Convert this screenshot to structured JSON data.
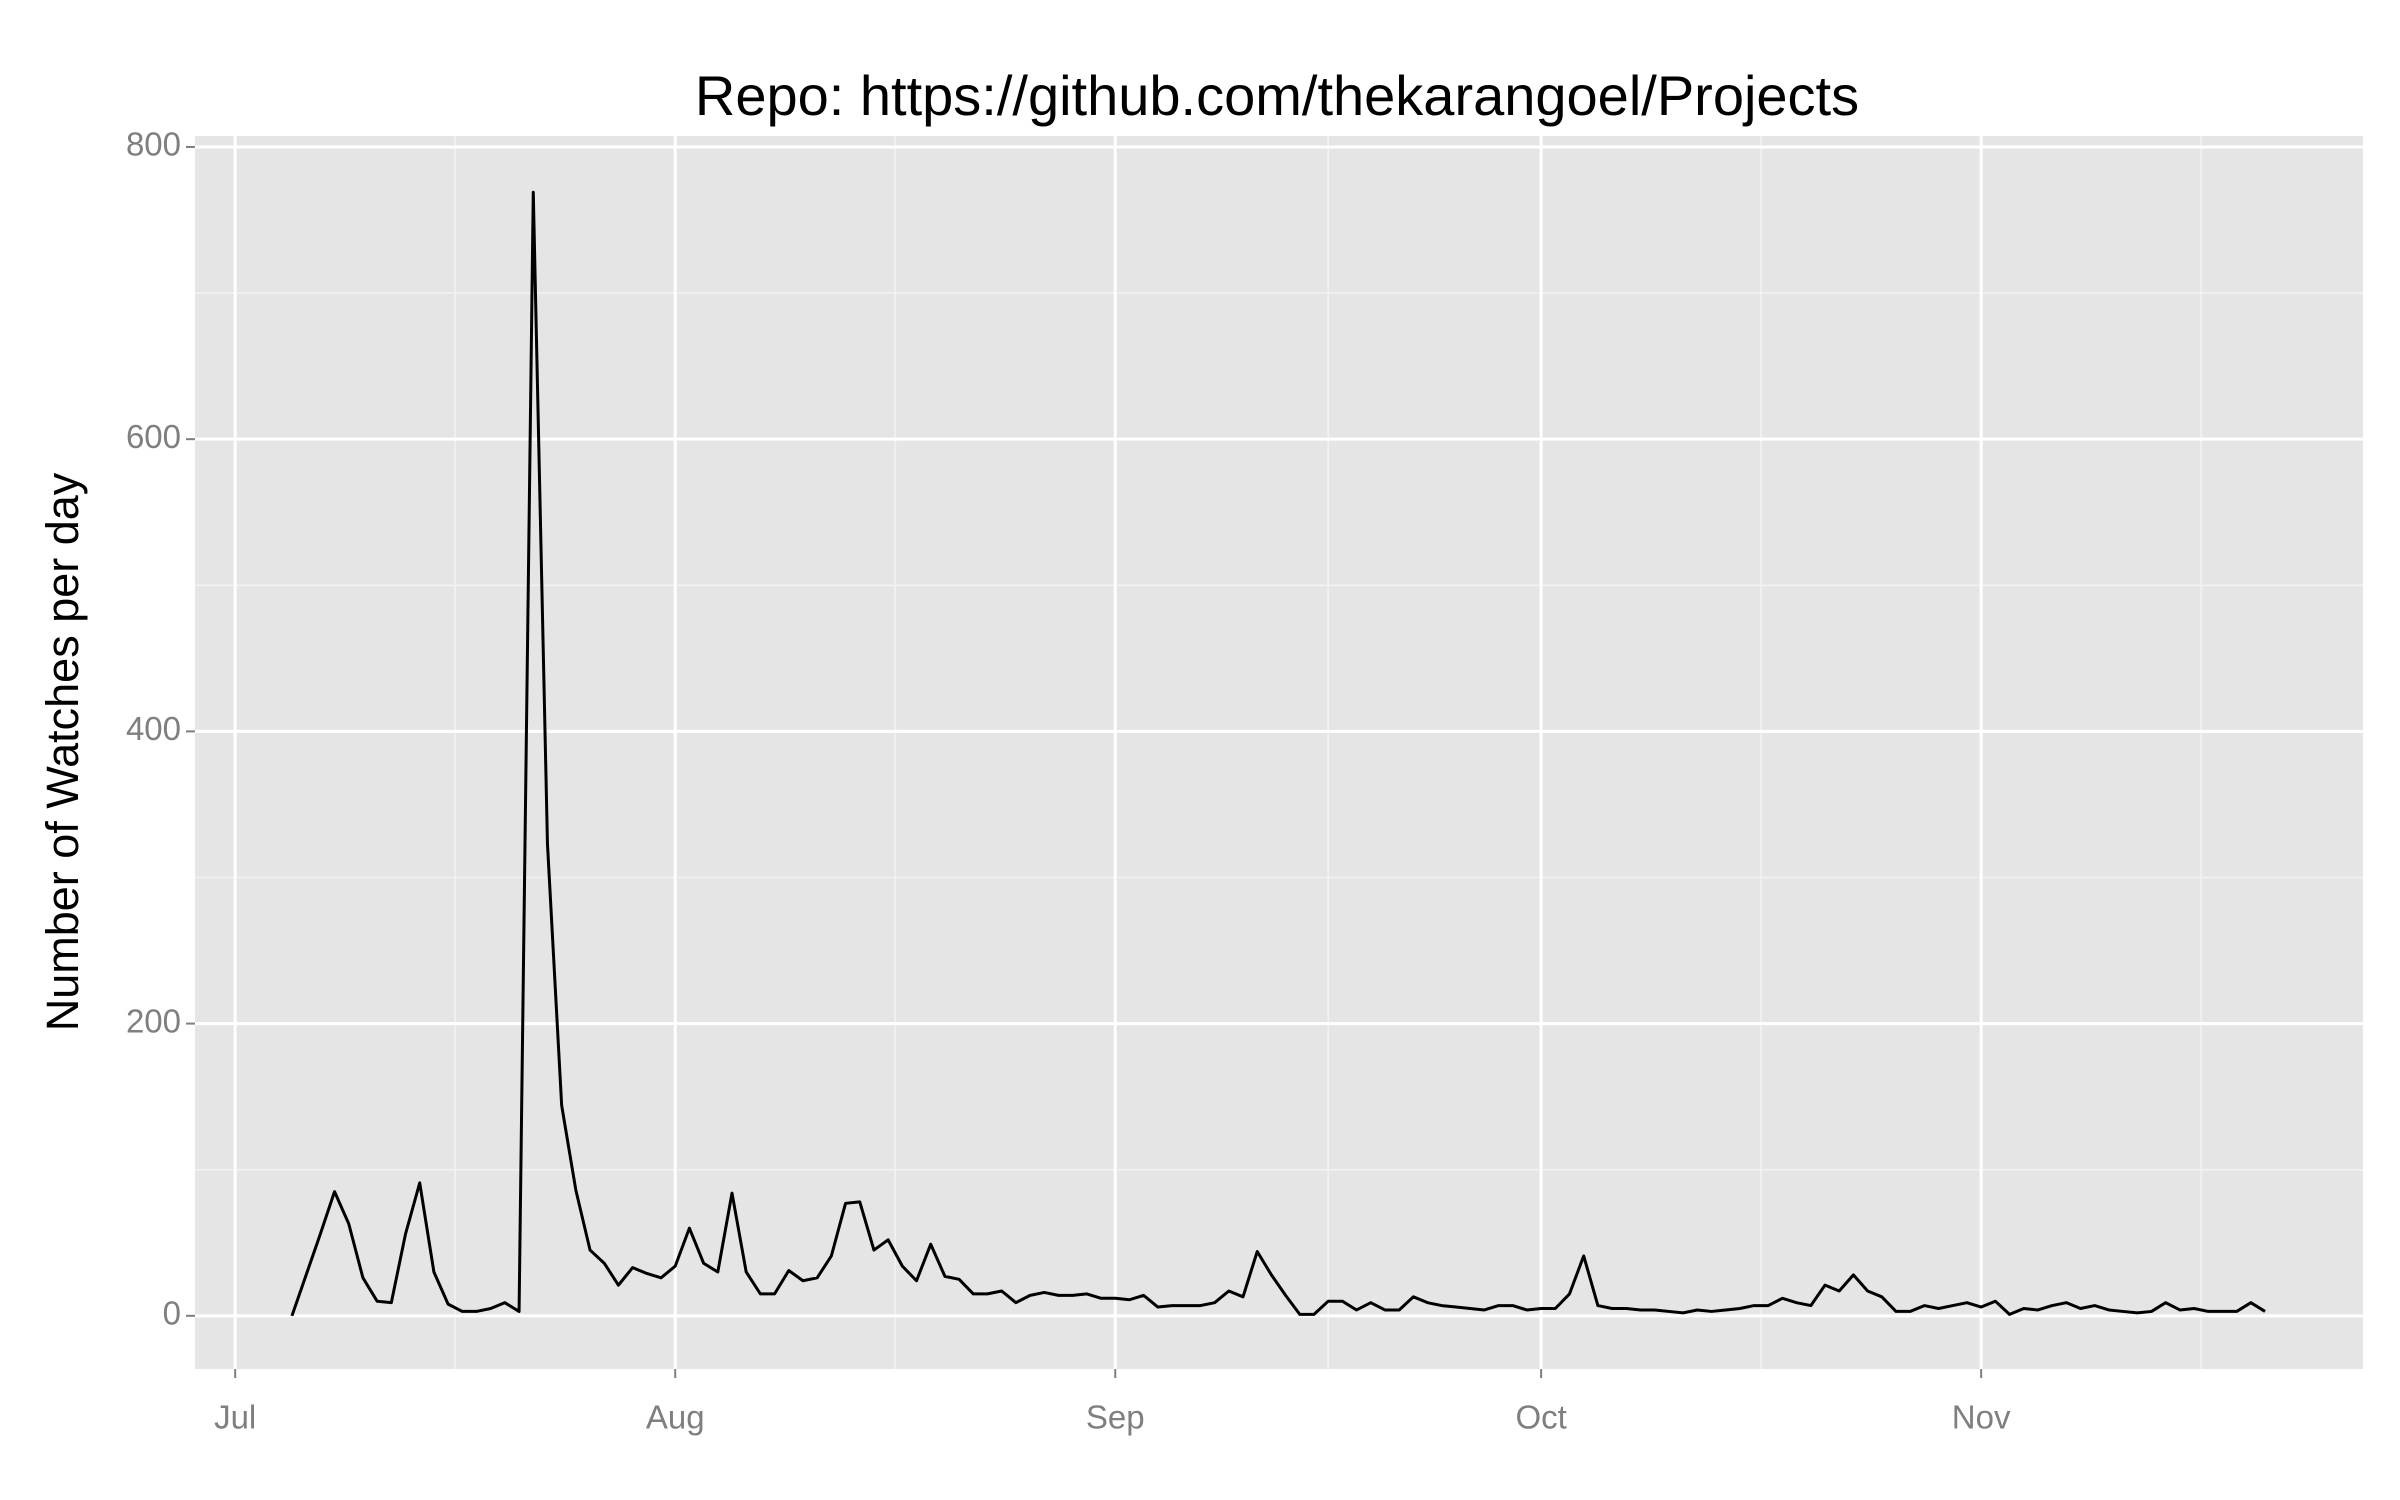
{
  "chart_data": {
    "type": "line",
    "title": "Repo: https://github.com/thekarangoel/Projects",
    "y_label": "Number of Watches per day",
    "x": [
      4,
      5,
      6,
      7,
      8,
      9,
      10,
      11,
      12,
      13,
      14,
      15,
      16,
      17,
      18,
      19,
      20,
      21,
      22,
      23,
      24,
      25,
      26,
      27,
      28,
      29,
      30,
      31,
      32,
      33,
      34,
      35,
      36,
      37,
      38,
      39,
      40,
      41,
      42,
      43,
      44,
      45,
      46,
      47,
      48,
      49,
      50,
      51,
      52,
      53,
      54,
      55,
      56,
      57,
      58,
      59,
      60,
      61,
      62,
      63,
      64,
      65,
      66,
      67,
      68,
      69,
      70,
      71,
      72,
      73,
      74,
      75,
      76,
      77,
      78,
      79,
      80,
      81,
      82,
      83,
      84,
      85,
      86,
      87,
      88,
      89,
      90,
      91,
      92,
      93,
      94,
      95,
      96,
      97,
      98,
      99,
      100,
      101,
      102,
      103,
      104,
      105,
      106,
      107,
      108,
      109,
      110,
      111,
      112,
      113,
      114,
      115,
      116,
      117,
      118,
      119,
      120,
      121,
      122,
      123,
      124,
      125,
      126,
      127,
      128,
      129,
      130,
      131,
      132,
      133,
      134,
      135,
      136,
      137,
      138,
      139,
      140,
      141,
      142,
      143
    ],
    "values": [
      0,
      28,
      56,
      85,
      63,
      26,
      10,
      9,
      56,
      91,
      30,
      8,
      3,
      3,
      5,
      9,
      3,
      769,
      323,
      144,
      86,
      45,
      36,
      21,
      33,
      29,
      26,
      34,
      60,
      36,
      30,
      84,
      30,
      15,
      15,
      31,
      24,
      26,
      41,
      77,
      78,
      45,
      52,
      34,
      24,
      49,
      27,
      25,
      15,
      15,
      17,
      9,
      14,
      16,
      14,
      14,
      15,
      12,
      12,
      11,
      14,
      6,
      7,
      7,
      7,
      9,
      17,
      13,
      44,
      28,
      14,
      1,
      1,
      10,
      10,
      4,
      9,
      4,
      4,
      13,
      9,
      7,
      6,
      5,
      4,
      7,
      7,
      4,
      5,
      5,
      15,
      41,
      7,
      5,
      5,
      4,
      4,
      3,
      2,
      4,
      3,
      4,
      5,
      7,
      7,
      12,
      9,
      7,
      21,
      17,
      28,
      17,
      13,
      3,
      3,
      7,
      5,
      7,
      9,
      6,
      10,
      1,
      5,
      4,
      7,
      9,
      5,
      7,
      4,
      3,
      2,
      3,
      9,
      4,
      5,
      3,
      3,
      3,
      9,
      3
    ],
    "color": "#000000",
    "xlim": [
      -2.83,
      149.9
    ],
    "xticks": [
      {
        "value": 0,
        "label": "Jul"
      },
      {
        "value": 31,
        "label": "Aug"
      },
      {
        "value": 62,
        "label": "Sep"
      },
      {
        "value": 92,
        "label": "Oct"
      },
      {
        "value": 123,
        "label": "Nov"
      }
    ],
    "ylim": [
      -36.4,
      807.5
    ],
    "yticks": [
      0,
      200,
      400,
      600,
      800
    ],
    "grid": true
  }
}
